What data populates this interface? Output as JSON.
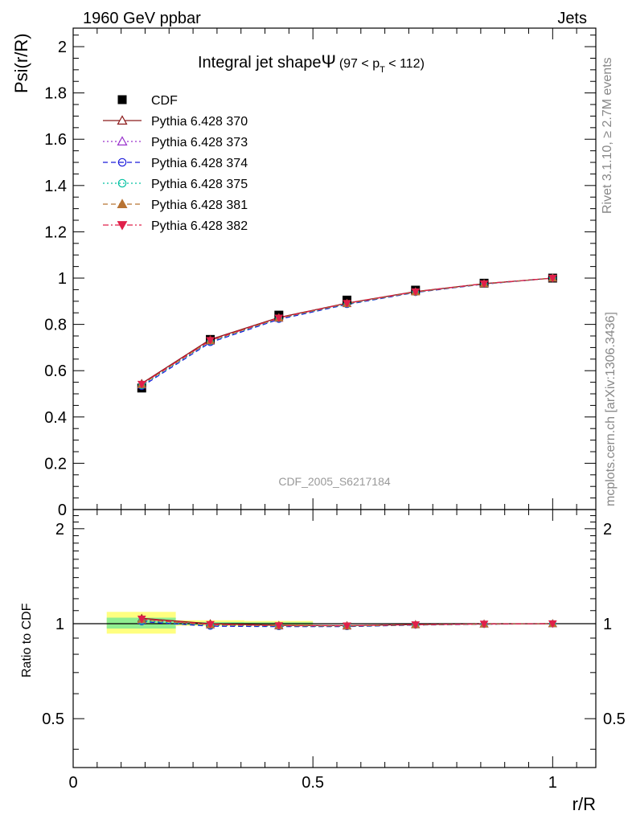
{
  "header": {
    "left": "1960 GeV ppbar",
    "right": "Jets"
  },
  "side_labels": {
    "rivet": "Rivet 3.1.10, ≥ 2.7M events",
    "mcplots": "mcplots.cern.ch [arXiv:1306.3436]"
  },
  "watermark": "CDF_2005_S6217184",
  "chart_data": [
    {
      "type": "line",
      "title": "Integral jet shape",
      "title_symbol": "Ψ",
      "title_range": {
        "open": "(97 < p",
        "sub": "T",
        "close": " < 112)"
      },
      "ylabel": "Psi(r/R)",
      "xlabel": "",
      "xlim": [
        0,
        1.09
      ],
      "ylim": [
        0,
        2.08
      ],
      "yticks": [
        "0",
        "0.2",
        "0.4",
        "0.6",
        "0.8",
        "1",
        "1.2",
        "1.4",
        "1.6",
        "1.8",
        "2"
      ],
      "x": [
        0.143,
        0.286,
        0.429,
        0.571,
        0.714,
        0.857,
        1.0
      ],
      "data": {
        "name": "CDF",
        "values": [
          0.525,
          0.735,
          0.84,
          0.905,
          0.948,
          0.978,
          1.0
        ]
      },
      "series": [
        {
          "name": "Pythia 6.428 370",
          "color": "#8b1a1a",
          "marker": "triangle-open",
          "dash": "solid",
          "values": [
            0.545,
            0.735,
            0.83,
            0.892,
            0.942,
            0.976,
            1.0
          ]
        },
        {
          "name": "Pythia 6.428 373",
          "color": "#9932cc",
          "marker": "triangle-open",
          "dash": "dot",
          "values": [
            0.538,
            0.727,
            0.826,
            0.889,
            0.94,
            0.975,
            1.0
          ]
        },
        {
          "name": "Pythia 6.428 374",
          "color": "#1a1adb",
          "marker": "circle-open",
          "dash": "dash",
          "values": [
            0.532,
            0.722,
            0.822,
            0.886,
            0.938,
            0.974,
            1.0
          ]
        },
        {
          "name": "Pythia 6.428 375",
          "color": "#00c0a0",
          "marker": "circle-open",
          "dash": "dot",
          "values": [
            0.536,
            0.726,
            0.825,
            0.888,
            0.939,
            0.975,
            1.0
          ]
        },
        {
          "name": "Pythia 6.428 381",
          "color": "#b87333",
          "marker": "triangle-filled",
          "dash": "dash",
          "values": [
            0.54,
            0.729,
            0.827,
            0.89,
            0.94,
            0.975,
            1.0
          ]
        },
        {
          "name": "Pythia 6.428 382",
          "color": "#e0204a",
          "marker": "triangle-down-filled",
          "dash": "dashdot",
          "values": [
            0.542,
            0.731,
            0.828,
            0.891,
            0.941,
            0.976,
            1.0
          ]
        }
      ]
    },
    {
      "type": "line",
      "ylabel": "Ratio to CDF",
      "xlabel": "r/R",
      "xlim": [
        0,
        1.09
      ],
      "ylim": [
        0.35,
        2.3
      ],
      "log_y": true,
      "yticks": [
        "0.5",
        "1",
        "2"
      ],
      "xticks": [
        "0",
        "0.5",
        "1"
      ],
      "bands": [
        {
          "x_range": [
            0.07,
            0.214
          ],
          "yellow": [
            0.93,
            1.09
          ],
          "green": [
            0.965,
            1.045
          ]
        },
        {
          "x_range": [
            0.214,
            0.357
          ],
          "yellow": [
            0.985,
            1.025
          ],
          "green": [
            0.992,
            1.012
          ]
        },
        {
          "x_range": [
            0.357,
            0.5
          ],
          "yellow": [
            0.99,
            1.02
          ],
          "green": [
            0.995,
            1.01
          ]
        }
      ],
      "series": [
        {
          "name": "Pythia 6.428 370",
          "color": "#8b1a1a",
          "marker": "triangle-open",
          "dash": "solid",
          "values": [
            1.04,
            1.0,
            0.988,
            0.986,
            0.994,
            0.998,
            1.0
          ]
        },
        {
          "name": "Pythia 6.428 373",
          "color": "#9932cc",
          "marker": "triangle-open",
          "dash": "dot",
          "values": [
            1.025,
            0.99,
            0.983,
            0.982,
            0.992,
            0.997,
            1.0
          ]
        },
        {
          "name": "Pythia 6.428 374",
          "color": "#1a1adb",
          "marker": "circle-open",
          "dash": "dash",
          "values": [
            1.015,
            0.982,
            0.979,
            0.979,
            0.99,
            0.996,
            1.0
          ]
        },
        {
          "name": "Pythia 6.428 375",
          "color": "#00c0a0",
          "marker": "circle-open",
          "dash": "dot",
          "values": [
            1.02,
            0.988,
            0.982,
            0.981,
            0.991,
            0.997,
            1.0
          ]
        },
        {
          "name": "Pythia 6.428 381",
          "color": "#b87333",
          "marker": "triangle-filled",
          "dash": "dash",
          "values": [
            1.03,
            0.992,
            0.985,
            0.983,
            0.992,
            0.997,
            1.0
          ]
        },
        {
          "name": "Pythia 6.428 382",
          "color": "#e0204a",
          "marker": "triangle-down-filled",
          "dash": "dashdot",
          "values": [
            1.035,
            0.995,
            0.986,
            0.985,
            0.993,
            0.998,
            1.0
          ]
        }
      ]
    }
  ]
}
